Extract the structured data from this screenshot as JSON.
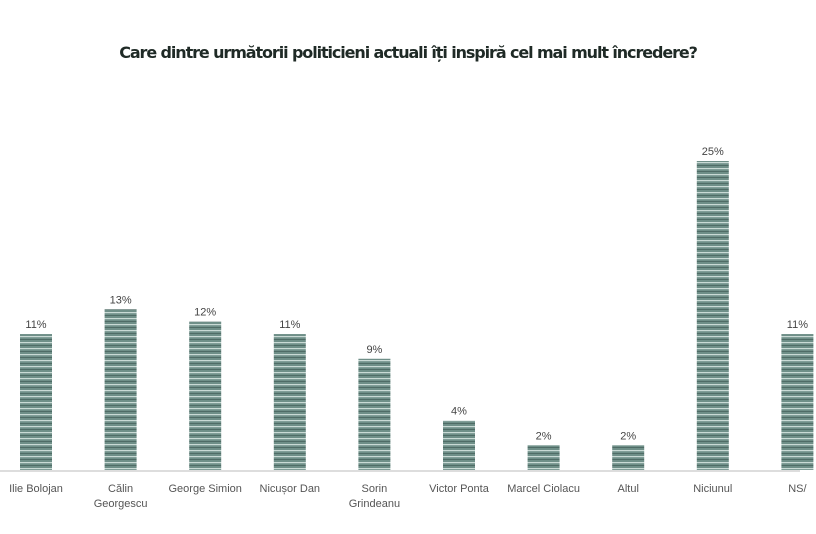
{
  "chart_data": {
    "type": "bar",
    "title": "Care dintre următorii politicieni actuali îți inspiră cel mai mult încredere?",
    "categories": [
      [
        "Ilie Bolojan"
      ],
      [
        "Călin",
        "Georgescu"
      ],
      [
        "George Simion"
      ],
      [
        "Nicușor Dan"
      ],
      [
        "Sorin",
        "Grindeanu"
      ],
      [
        "Victor Ponta"
      ],
      [
        "Marcel Ciolacu"
      ],
      [
        "Altul"
      ],
      [
        "Niciunul"
      ],
      [
        "NS/"
      ]
    ],
    "values": [
      11,
      13,
      12,
      11,
      9,
      4,
      2,
      2,
      25,
      11
    ],
    "value_labels": [
      "11%",
      "13%",
      "12%",
      "11%",
      "9%",
      "4%",
      "2%",
      "2%",
      "25%",
      "11%"
    ],
    "unit": "%",
    "ylim": [
      0,
      25
    ],
    "grid": false,
    "bar_color": "#6f8f88"
  }
}
